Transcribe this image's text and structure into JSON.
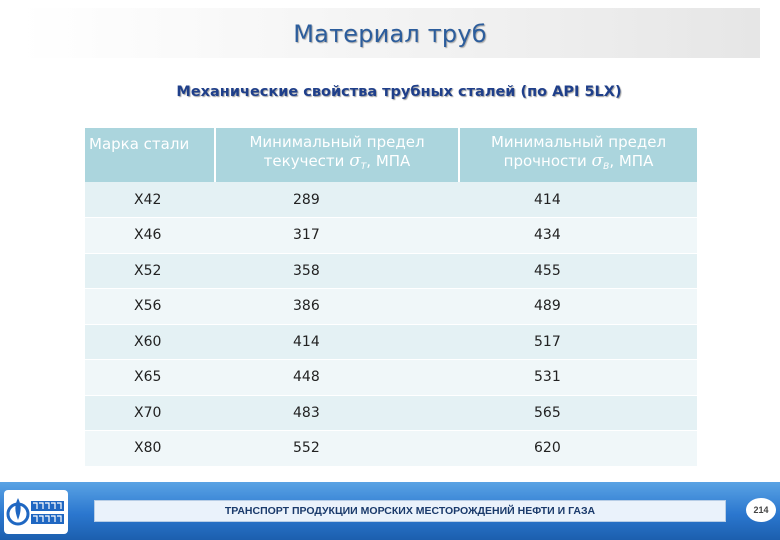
{
  "slide": {
    "title": "Материал труб",
    "subtitle": "Механические свойства трубных сталей (по API 5LX)"
  },
  "table": {
    "headers": {
      "grade": "Марка стали",
      "yield_line1": "Минимальный предел",
      "yield_line2": "текучести",
      "yield_symbol": "σ",
      "yield_sub": "T",
      "yield_unit": ", МПА",
      "tensile_line1": "Минимальный предел",
      "tensile_line2": "прочности",
      "tensile_symbol": "σ",
      "tensile_sub": "B",
      "tensile_unit": ", МПА"
    },
    "rows": [
      {
        "grade": "X42",
        "yield": "289",
        "tensile": "414"
      },
      {
        "grade": "X46",
        "yield": "317",
        "tensile": "434"
      },
      {
        "grade": "X52",
        "yield": "358",
        "tensile": "455"
      },
      {
        "grade": "X56",
        "yield": "386",
        "tensile": "489"
      },
      {
        "grade": "X60",
        "yield": "414",
        "tensile": "517"
      },
      {
        "grade": "X65",
        "yield": "448",
        "tensile": "531"
      },
      {
        "grade": "X70",
        "yield": "483",
        "tensile": "565"
      },
      {
        "grade": "X80",
        "yield": "552",
        "tensile": "620"
      }
    ]
  },
  "footer": {
    "text": "ТРАНСПОРТ ПРОДУКЦИИ МОРСКИХ МЕСТОРОЖДЕНИЙ НЕФТИ И ГАЗА",
    "page_number": "214",
    "logo_text": "ГАЗПРОМ",
    "logo_icon": "gazprom-flame-icon"
  },
  "colors": {
    "title": "#2c5d9c",
    "header_bg": "#abd5dd",
    "row_odd": "#e4f1f4",
    "row_even": "#f0f7f9",
    "footer": "#2b77cf"
  }
}
